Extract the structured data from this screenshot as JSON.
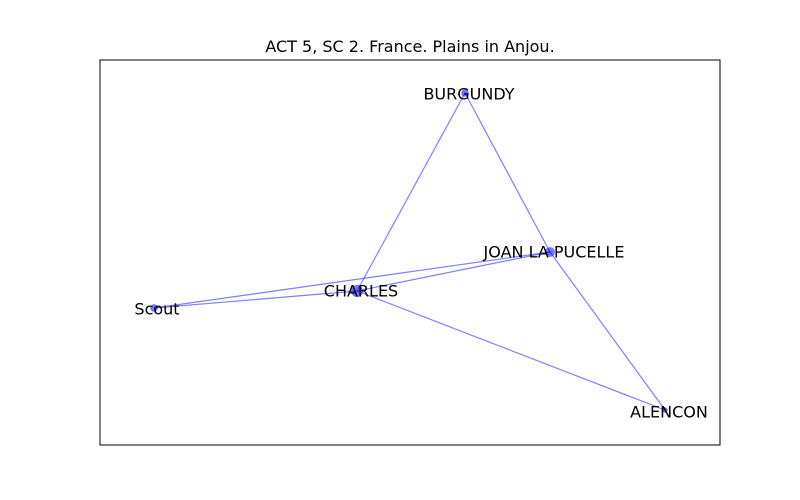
{
  "title": "ACT 5, SC 2. France. Plains in Anjou.",
  "colors": {
    "edge": "#0000ff",
    "node": "#0000ff",
    "frame": "#000000"
  },
  "nodes": [
    {
      "id": "burgundy",
      "label": "BURGUNDY",
      "weight": 2
    },
    {
      "id": "joan",
      "label": "JOAN LA PUCELLE",
      "weight": 3
    },
    {
      "id": "charles",
      "label": "CHARLES",
      "weight": 4
    },
    {
      "id": "scout",
      "label": "Scout",
      "weight": 2
    },
    {
      "id": "alencon",
      "label": "ALENCON",
      "weight": 1
    }
  ],
  "edges": [
    {
      "source": "burgundy",
      "target": "charles"
    },
    {
      "source": "burgundy",
      "target": "joan"
    },
    {
      "source": "joan",
      "target": "alencon"
    },
    {
      "source": "charles",
      "target": "joan"
    },
    {
      "source": "charles",
      "target": "alencon"
    },
    {
      "source": "scout",
      "target": "charles"
    },
    {
      "source": "scout",
      "target": "joan"
    }
  ]
}
